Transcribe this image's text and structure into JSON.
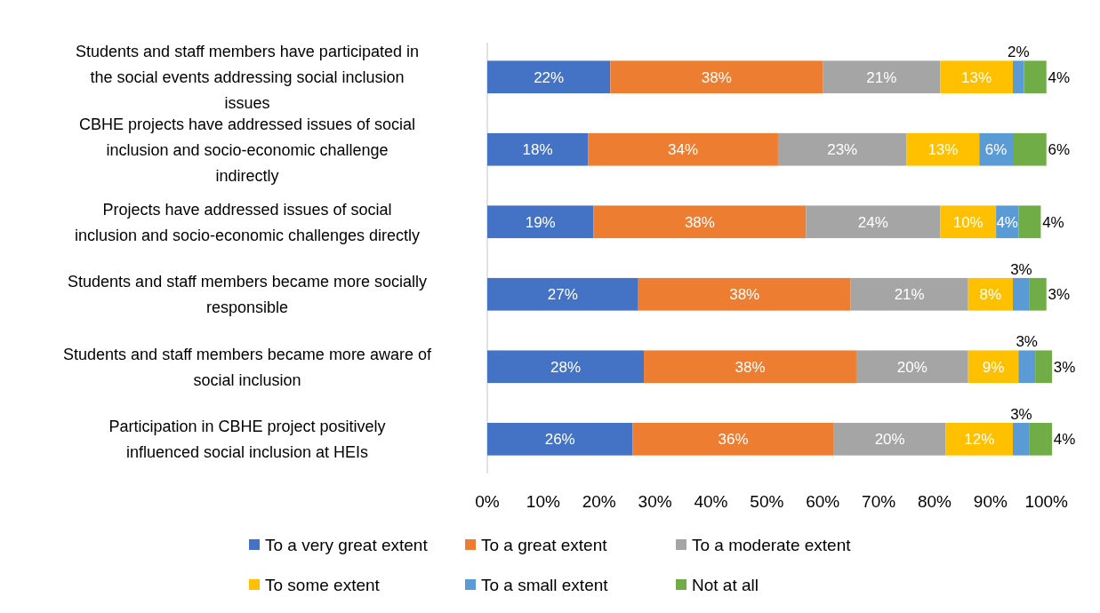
{
  "chart_data": {
    "type": "bar",
    "orientation": "horizontal",
    "stacked": true,
    "legend": "bottom",
    "grid": false,
    "categories": [
      "Students and staff members have participated in the social events addressing social inclusion issues",
      "CBHE projects have addressed issues of social inclusion and socio-economic challenge indirectly",
      "Projects have addressed issues of social inclusion and socio-economic challenges directly",
      "Students and staff members became more socially responsible",
      "Students and staff members became more aware of social inclusion",
      "Participation in CBHE project positively influenced social inclusion at HEIs"
    ],
    "series": [
      {
        "name": "To a very great extent",
        "color": "#4472c4",
        "values": [
          22,
          18,
          19,
          27,
          28,
          26
        ],
        "value_labels": [
          "22%",
          "18%",
          "19%",
          "27%",
          "28%",
          "26%"
        ]
      },
      {
        "name": "To a great extent",
        "color": "#ed7d31",
        "values": [
          38,
          34,
          38,
          38,
          38,
          36
        ],
        "value_labels": [
          "38%",
          "34%",
          "38%",
          "38%",
          "38%",
          "36%"
        ]
      },
      {
        "name": "To a moderate extent",
        "color": "#a5a5a5",
        "values": [
          21,
          23,
          24,
          21,
          20,
          20
        ],
        "value_labels": [
          "21%",
          "23%",
          "24%",
          "21%",
          "20%",
          "20%"
        ]
      },
      {
        "name": "To some extent",
        "color": "#ffc000",
        "values": [
          13,
          13,
          10,
          8,
          9,
          12
        ],
        "value_labels": [
          "13%",
          "13%",
          "10%",
          "8%",
          "9%",
          "12%"
        ]
      },
      {
        "name": "To a small extent",
        "color": "#5b9bd5",
        "values": [
          2,
          6,
          4,
          3,
          3,
          3
        ],
        "value_labels": [
          "2%",
          "6%",
          "4%",
          "3%",
          "3%",
          "3%"
        ]
      },
      {
        "name": "Not at all",
        "color": "#70ad47",
        "values": [
          4,
          6,
          4,
          3,
          3,
          4
        ],
        "value_labels": [
          "4%",
          "6%",
          "4%",
          "3%",
          "3%",
          "4%"
        ]
      }
    ],
    "xlim": [
      0,
      101
    ],
    "xticks": [
      {
        "value": 0,
        "label": "0%"
      },
      {
        "value": 10,
        "label": "10%"
      },
      {
        "value": 20,
        "label": "20%"
      },
      {
        "value": 30,
        "label": "30%"
      },
      {
        "value": 40,
        "label": "40%"
      },
      {
        "value": 50,
        "label": "50%"
      },
      {
        "value": 60,
        "label": "60%"
      },
      {
        "value": 70,
        "label": "70%"
      },
      {
        "value": 80,
        "label": "80%"
      },
      {
        "value": 90,
        "label": "90%"
      },
      {
        "value": 100,
        "label": "100%"
      }
    ]
  }
}
